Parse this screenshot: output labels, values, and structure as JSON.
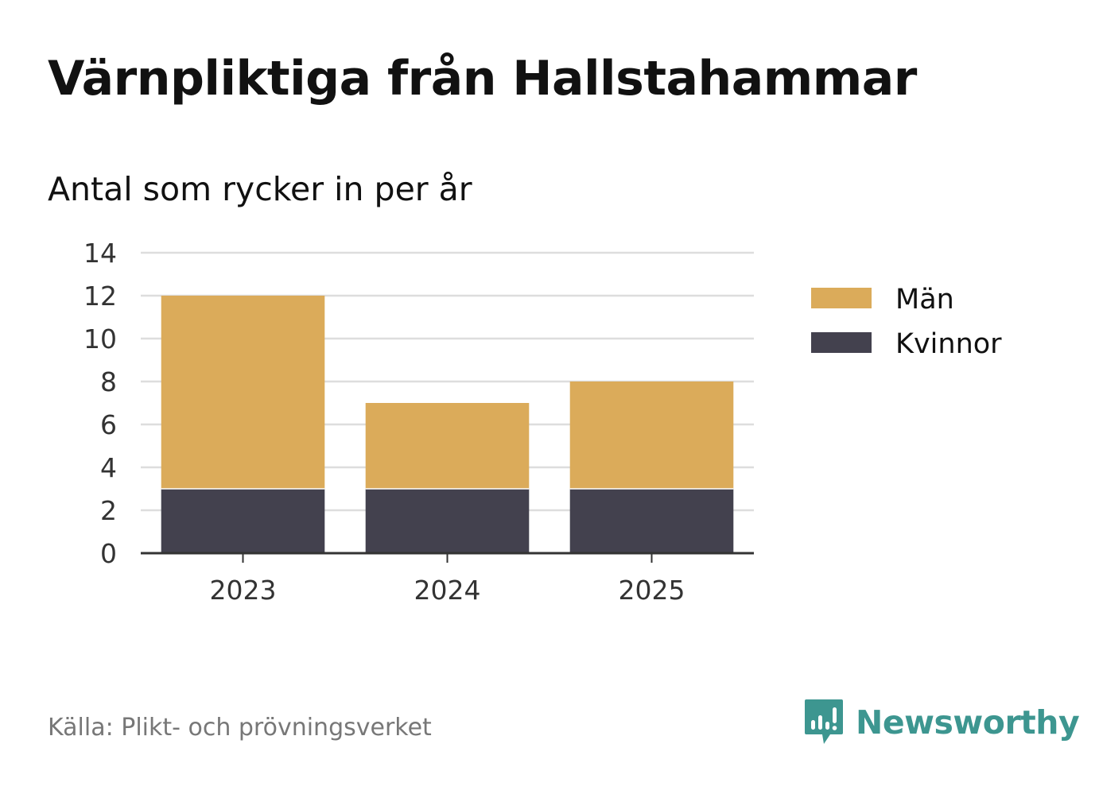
{
  "header": {
    "title": "Värnpliktiga från Hallstahammar",
    "subtitle": "Antal som rycker in per år"
  },
  "footer": {
    "source": "Källa: Plikt- och prövningsverket",
    "brand": "Newsworthy",
    "brand_icon": "newsworthy-logo-icon",
    "brand_color": "#3d9690"
  },
  "chart_data": {
    "type": "bar",
    "stacked": true,
    "categories": [
      "2023",
      "2024",
      "2025"
    ],
    "series": [
      {
        "name": "Kvinnor",
        "values": [
          3,
          3,
          3
        ],
        "color": "#43414e"
      },
      {
        "name": "Män",
        "values": [
          9,
          4,
          5
        ],
        "color": "#dbab5a"
      }
    ],
    "legend_order": [
      "Män",
      "Kvinnor"
    ],
    "yticks": [
      0,
      2,
      4,
      6,
      8,
      10,
      12,
      14
    ],
    "ylim": [
      0,
      14
    ],
    "grid": true,
    "legend": "right"
  }
}
